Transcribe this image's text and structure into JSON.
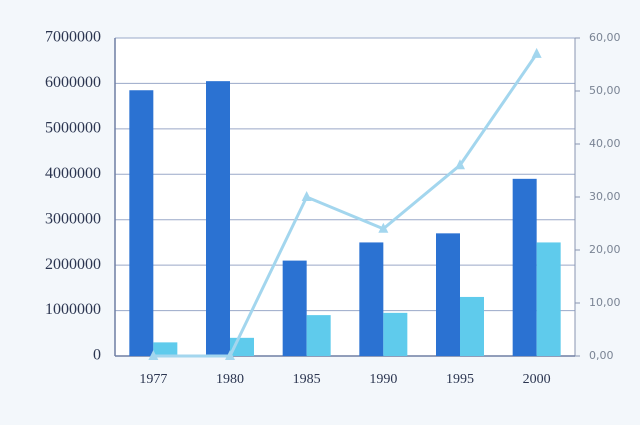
{
  "chart_data": {
    "type": "bar",
    "categories": [
      "1977",
      "1980",
      "1985",
      "1990",
      "1995",
      "2000"
    ],
    "series": [
      {
        "color": "#2b72d2",
        "values": [
          5850000,
          6050000,
          2100000,
          2500000,
          2700000,
          3900000
        ]
      },
      {
        "color": "#5fcbec",
        "values": [
          300000,
          400000,
          900000,
          950000,
          1300000,
          2500000
        ]
      },
      {
        "type": "line",
        "axis": "y2",
        "color": "#a3d6ee",
        "values": [
          0,
          0,
          30,
          24,
          36,
          57
        ]
      }
    ],
    "ylim": [
      0,
      7000000
    ],
    "yticks": [
      0,
      1000000,
      2000000,
      3000000,
      4000000,
      5000000,
      6000000,
      7000000
    ],
    "y2lim": [
      0,
      60
    ],
    "y2ticks": [
      {
        "value": 0,
        "label": "0,00"
      },
      {
        "value": 10,
        "label": "10,00"
      },
      {
        "value": 20,
        "label": "20,00"
      },
      {
        "value": 30,
        "label": "30,00"
      },
      {
        "value": 40,
        "label": "40,00"
      },
      {
        "value": 50,
        "label": "50,00"
      },
      {
        "value": 60,
        "label": "60,00"
      }
    ],
    "grid": true
  }
}
